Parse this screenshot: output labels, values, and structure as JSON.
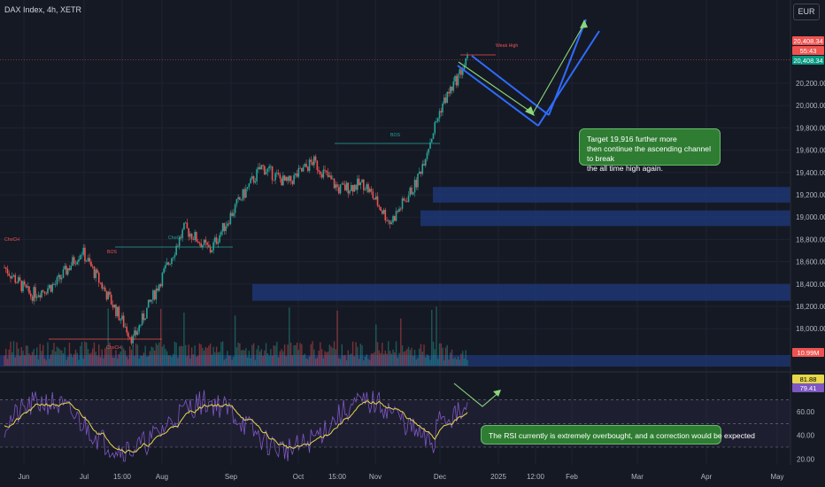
{
  "header": {
    "title": "DAX Index, 4h, XETR",
    "currency": "EUR"
  },
  "price_axis": {
    "ticks": [
      "20,200.00",
      "20,000.00",
      "19,800.00",
      "19,600.00",
      "19,400.00",
      "19,200.00",
      "19,000.00",
      "18,800.00",
      "18,600.00",
      "18,400.00",
      "18,200.00",
      "18,000.00"
    ],
    "current_price": "20,408.34",
    "countdown": "55:43",
    "volume_value": "10.99M"
  },
  "rsi_axis": {
    "ticks": [
      "60.00",
      "40.00",
      "20.00"
    ],
    "rsi_value": "81.88",
    "rsi_ma": "79.41"
  },
  "time_axis": [
    "Jun",
    "Jul",
    "15:00",
    "Aug",
    "Sep",
    "Oct",
    "15:00",
    "Nov",
    "Dec",
    "2025",
    "12:00",
    "Feb",
    "Mar",
    "Apr",
    "May"
  ],
  "annotations": {
    "price_note": "Target 19,916 further more\nthen continue the ascending channel to break\nthe all time high again.",
    "rsi_note": "The RSI currently is extremely overbought, and a correction would be expected"
  },
  "chart_labels": [
    "ChoCH",
    "BOS",
    "ChoCH",
    "ChoCH",
    "BOS",
    "Weak High"
  ],
  "colors": {
    "bull": "#26a69a",
    "bear": "#ef5350",
    "zone": "#1e3f8c",
    "channel": "#2f6bff",
    "target": "#8bd77a",
    "rsi": "#7e57c2",
    "rsi_ma": "#e6d84a",
    "annotation": "#2e7d32"
  },
  "chart_data": {
    "type": "candlestick",
    "instrument": "DAX Index",
    "timeframe": "4h",
    "exchange": "XETR",
    "price_range": [
      17780,
      20700
    ],
    "close_path": [
      [
        "Jun",
        18550
      ],
      [
        "mid-Jun",
        18300
      ],
      [
        "Jul",
        18400
      ],
      [
        "mid-Jul",
        18700
      ],
      [
        "late-Jul",
        18300
      ],
      [
        "Aug",
        17900
      ],
      [
        "mid-Aug",
        18400
      ],
      [
        "late-Aug",
        18900
      ],
      [
        "Sep",
        18700
      ],
      [
        "mid-Sep",
        19100
      ],
      [
        "late-Sep",
        19450
      ],
      [
        "Oct",
        19300
      ],
      [
        "mid-Oct",
        19500
      ],
      [
        "late-Oct",
        19250
      ],
      [
        "Nov",
        19300
      ],
      [
        "mid-Nov",
        18950
      ],
      [
        "late-Nov",
        19300
      ],
      [
        "Dec",
        20000
      ],
      [
        "mid-Dec",
        20408.34
      ]
    ],
    "demand_zones": [
      [
        19130,
        19270
      ],
      [
        18920,
        19060
      ],
      [
        18250,
        18400
      ]
    ],
    "projection": {
      "correction_target": 19916,
      "path": [
        "20408",
        "19916",
        "new all time high"
      ]
    },
    "rsi": {
      "value": 81.88,
      "ma": 79.41,
      "levels": [
        70,
        50,
        30
      ],
      "range": [
        15,
        90
      ]
    },
    "volume_last": "10.99M"
  }
}
